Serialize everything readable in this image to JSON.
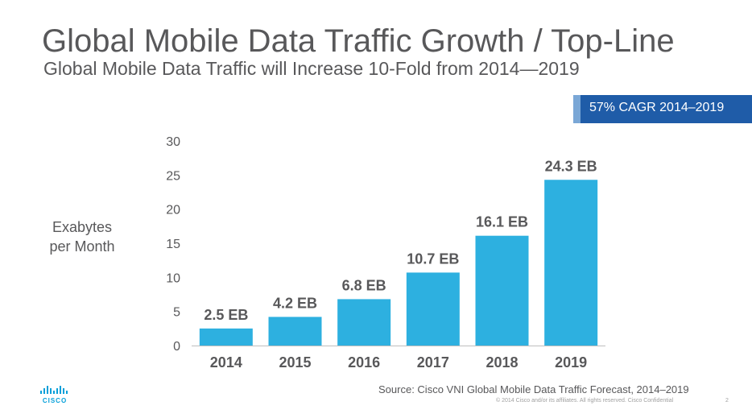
{
  "title": "Global Mobile Data Traffic Growth / Top-Line",
  "subtitle": "Global Mobile Data Traffic will Increase 10-Fold from 2014—2019",
  "cagr_badge": "57% CAGR 2014–2019",
  "source": "Source: Cisco VNI  Global Mobile  Data Traffic Forecast, 2014–2019",
  "footer": "© 2014  Cisco and/or  its affiliates.  All rights reserved.    Cisco Confidential",
  "page_number": "2",
  "logo_text": "CISCO",
  "colors": {
    "bar": "#2db0e0",
    "badge": "#1f5ca8",
    "text": "#58585a",
    "logo": "#049fd9"
  },
  "chart_data": {
    "type": "bar",
    "categories": [
      "2014",
      "2015",
      "2016",
      "2017",
      "2018",
      "2019"
    ],
    "values": [
      2.5,
      4.2,
      6.8,
      10.7,
      16.1,
      24.3
    ],
    "data_labels": [
      "2.5 EB",
      "4.2 EB",
      "6.8 EB",
      "10.7 EB",
      "16.1 EB",
      "24.3 EB"
    ],
    "ylabel_line1": "Exabytes",
    "ylabel_line2": "per Month",
    "ylim": [
      0,
      30
    ],
    "yticks": [
      0,
      5,
      10,
      15,
      20,
      25,
      30
    ],
    "grid": false,
    "legend": "none"
  }
}
